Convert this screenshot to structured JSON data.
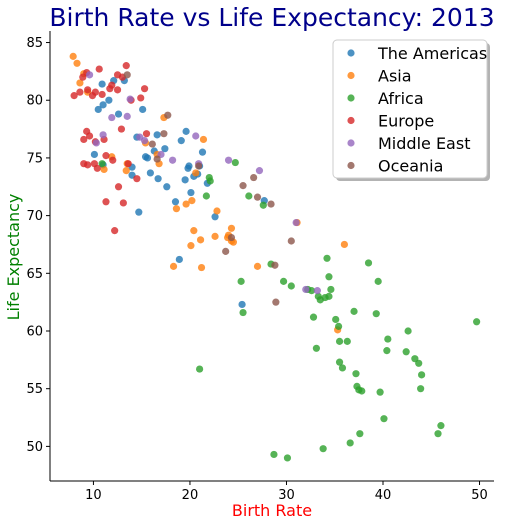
{
  "chart_data": {
    "type": "scatter",
    "title": "Birth Rate vs Life Expectancy: 2013",
    "xlabel": "Birth Rate",
    "ylabel": "Life Expectancy",
    "xlim": [
      5.5,
      51.5
    ],
    "ylim": [
      47,
      86
    ],
    "xticks": [
      10,
      20,
      30,
      40,
      50
    ],
    "yticks": [
      50,
      55,
      60,
      65,
      70,
      75,
      80,
      85
    ],
    "grid": false,
    "legend_position": "top-right",
    "colors": {
      "title": "#00008b",
      "xlabel": "#ff0000",
      "ylabel": "#008000"
    },
    "series": [
      {
        "name": "The Americas",
        "color": "#1f77b4",
        "points": [
          [
            10.1,
            75.3
          ],
          [
            10.5,
            79.2
          ],
          [
            11.0,
            79.6
          ],
          [
            11.6,
            80.0
          ],
          [
            10.9,
            81.4
          ],
          [
            12.1,
            81.7
          ],
          [
            11.0,
            74.4
          ],
          [
            12.6,
            78.8
          ],
          [
            13.2,
            81.7
          ],
          [
            14.0,
            74.2
          ],
          [
            14.0,
            73.5
          ],
          [
            14.5,
            76.8
          ],
          [
            15.1,
            79.2
          ],
          [
            15.4,
            75.1
          ],
          [
            15.6,
            75.0
          ],
          [
            15.9,
            73.7
          ],
          [
            16.3,
            75.6
          ],
          [
            16.6,
            77.0
          ],
          [
            16.7,
            73.2
          ],
          [
            17.4,
            75.8
          ],
          [
            17.6,
            72.5
          ],
          [
            18.5,
            71.2
          ],
          [
            18.9,
            66.2
          ],
          [
            19.1,
            76.5
          ],
          [
            19.5,
            73.1
          ],
          [
            19.6,
            77.3
          ],
          [
            19.8,
            74.1
          ],
          [
            19.9,
            74.3
          ],
          [
            20.1,
            72.0
          ],
          [
            20.4,
            73.4
          ],
          [
            21.0,
            74.3
          ],
          [
            21.3,
            75.5
          ],
          [
            21.8,
            72.8
          ],
          [
            22.6,
            69.9
          ],
          [
            25.4,
            62.3
          ],
          [
            27.7,
            71.3
          ],
          [
            14.7,
            70.3
          ],
          [
            20.8,
            73.6
          ]
        ]
      },
      {
        "name": "Asia",
        "color": "#ff7f0e",
        "points": [
          [
            7.9,
            83.8
          ],
          [
            8.3,
            83.2
          ],
          [
            8.6,
            81.5
          ],
          [
            9.0,
            82.3
          ],
          [
            9.4,
            80.7
          ],
          [
            11.1,
            74.0
          ],
          [
            11.9,
            75.1
          ],
          [
            13.4,
            73.9
          ],
          [
            13.5,
            74.5
          ],
          [
            15.4,
            76.3
          ],
          [
            16.6,
            75.3
          ],
          [
            16.8,
            74.5
          ],
          [
            17.3,
            78.5
          ],
          [
            18.3,
            65.6
          ],
          [
            18.6,
            70.6
          ],
          [
            19.6,
            71.0
          ],
          [
            20.1,
            67.4
          ],
          [
            20.2,
            71.3
          ],
          [
            20.4,
            68.7
          ],
          [
            20.6,
            73.7
          ],
          [
            21.1,
            67.9
          ],
          [
            21.2,
            65.5
          ],
          [
            21.4,
            76.6
          ],
          [
            22.6,
            68.2
          ],
          [
            22.8,
            70.4
          ],
          [
            23.9,
            68.1
          ],
          [
            24.0,
            68.3
          ],
          [
            24.3,
            67.8
          ],
          [
            24.3,
            68.9
          ],
          [
            24.5,
            67.7
          ],
          [
            27.0,
            65.6
          ],
          [
            31.1,
            69.4
          ],
          [
            35.3,
            60.1
          ],
          [
            36.0,
            67.5
          ]
        ]
      },
      {
        "name": "Africa",
        "color": "#2ca02c",
        "points": [
          [
            10.9,
            74.5
          ],
          [
            21.0,
            56.7
          ],
          [
            21.7,
            71.7
          ],
          [
            22.0,
            73.3
          ],
          [
            22.1,
            73.0
          ],
          [
            24.7,
            74.6
          ],
          [
            25.3,
            64.3
          ],
          [
            25.5,
            61.6
          ],
          [
            26.1,
            71.7
          ],
          [
            27.6,
            70.9
          ],
          [
            28.4,
            65.8
          ],
          [
            28.7,
            49.3
          ],
          [
            29.7,
            64.3
          ],
          [
            30.1,
            49.0
          ],
          [
            30.5,
            63.9
          ],
          [
            32.2,
            63.6
          ],
          [
            32.6,
            63.5
          ],
          [
            32.8,
            61.2
          ],
          [
            33.3,
            63.0
          ],
          [
            33.5,
            62.7
          ],
          [
            33.8,
            49.8
          ],
          [
            34.0,
            62.9
          ],
          [
            34.2,
            66.3
          ],
          [
            34.4,
            63.0
          ],
          [
            34.4,
            64.7
          ],
          [
            34.6,
            63.6
          ],
          [
            35.1,
            61.0
          ],
          [
            35.4,
            60.4
          ],
          [
            35.5,
            59.1
          ],
          [
            35.8,
            56.8
          ],
          [
            36.3,
            59.1
          ],
          [
            36.6,
            50.3
          ],
          [
            37.0,
            61.7
          ],
          [
            37.2,
            56.3
          ],
          [
            37.3,
            55.2
          ],
          [
            37.5,
            54.9
          ],
          [
            37.6,
            51.1
          ],
          [
            37.8,
            54.8
          ],
          [
            38.5,
            65.9
          ],
          [
            39.3,
            61.5
          ],
          [
            39.5,
            64.3
          ],
          [
            39.7,
            54.7
          ],
          [
            40.1,
            52.4
          ],
          [
            40.4,
            58.3
          ],
          [
            40.5,
            59.3
          ],
          [
            42.4,
            58.2
          ],
          [
            42.6,
            60.0
          ],
          [
            43.3,
            57.6
          ],
          [
            43.7,
            57.2
          ],
          [
            43.9,
            55.0
          ],
          [
            44.0,
            56.2
          ],
          [
            45.7,
            51.1
          ],
          [
            46.0,
            51.8
          ],
          [
            49.7,
            60.8
          ],
          [
            35.5,
            57.3
          ],
          [
            33.1,
            58.5
          ]
        ]
      },
      {
        "name": "Europe",
        "color": "#d62728",
        "points": [
          [
            8.0,
            80.4
          ],
          [
            8.6,
            80.7
          ],
          [
            8.9,
            82.0
          ],
          [
            9.3,
            82.4
          ],
          [
            9.4,
            80.9
          ],
          [
            9.0,
            76.6
          ],
          [
            9.0,
            74.5
          ],
          [
            9.3,
            77.3
          ],
          [
            9.4,
            74.4
          ],
          [
            9.6,
            76.9
          ],
          [
            10.2,
            80.7
          ],
          [
            10.2,
            76.4
          ],
          [
            10.4,
            74.1
          ],
          [
            10.6,
            82.7
          ],
          [
            10.9,
            80.5
          ],
          [
            11.1,
            76.6
          ],
          [
            11.3,
            75.2
          ],
          [
            11.3,
            71.2
          ],
          [
            11.7,
            81.0
          ],
          [
            11.9,
            81.3
          ],
          [
            12.0,
            74.8
          ],
          [
            12.2,
            68.7
          ],
          [
            12.5,
            80.9
          ],
          [
            12.5,
            82.2
          ],
          [
            12.6,
            72.5
          ],
          [
            12.9,
            77.5
          ],
          [
            13.0,
            82.0
          ],
          [
            13.1,
            71.1
          ],
          [
            13.4,
            83.0
          ],
          [
            13.9,
            80.0
          ],
          [
            14.5,
            73.2
          ],
          [
            14.9,
            80.2
          ],
          [
            15.3,
            81.0
          ],
          [
            15.5,
            77.1
          ],
          [
            10.1,
            74.5
          ],
          [
            9.9,
            80.4
          ],
          [
            13.6,
            74.5
          ]
        ]
      },
      {
        "name": "Middle East",
        "color": "#9467bd",
        "points": [
          [
            9.6,
            82.2
          ],
          [
            10.3,
            76.3
          ],
          [
            11.0,
            77.0
          ],
          [
            11.9,
            78.5
          ],
          [
            13.5,
            78.6
          ],
          [
            13.8,
            80.1
          ],
          [
            14.8,
            76.8
          ],
          [
            15.3,
            76.5
          ],
          [
            17.0,
            75.3
          ],
          [
            18.2,
            74.8
          ],
          [
            20.6,
            76.9
          ],
          [
            20.9,
            74.5
          ],
          [
            24.0,
            74.8
          ],
          [
            27.2,
            73.9
          ],
          [
            31.0,
            69.4
          ],
          [
            32.0,
            63.6
          ],
          [
            33.2,
            63.5
          ]
        ]
      },
      {
        "name": "Oceania",
        "color": "#8c564b",
        "points": [
          [
            13.5,
            82.2
          ],
          [
            16.1,
            76.2
          ],
          [
            16.6,
            74.9
          ],
          [
            17.3,
            77.1
          ],
          [
            17.7,
            78.7
          ],
          [
            20.9,
            74.3
          ],
          [
            23.7,
            66.9
          ],
          [
            24.3,
            68.1
          ],
          [
            25.5,
            72.6
          ],
          [
            26.6,
            73.3
          ],
          [
            27.0,
            71.6
          ],
          [
            28.4,
            71.0
          ],
          [
            28.8,
            65.7
          ],
          [
            28.9,
            62.5
          ],
          [
            30.5,
            67.8
          ]
        ]
      }
    ]
  }
}
